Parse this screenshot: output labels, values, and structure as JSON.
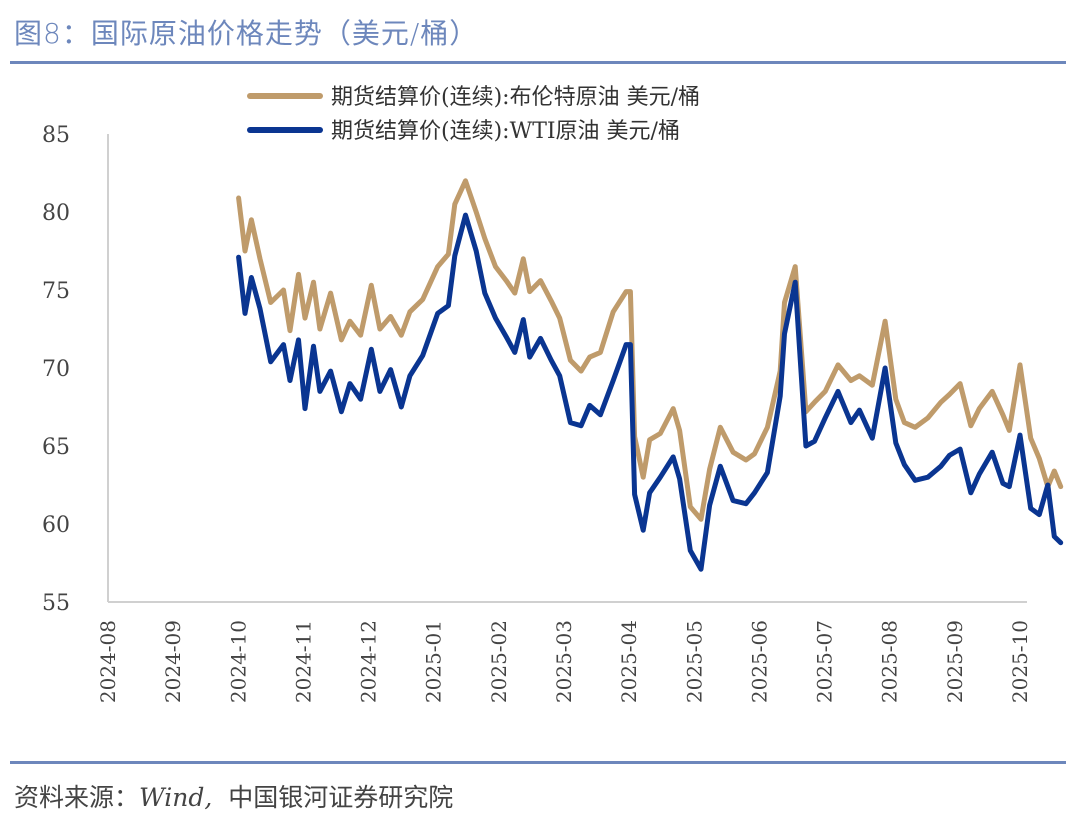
{
  "header": {
    "title": "图8：国际原油价格走势（美元/桶）"
  },
  "footer": {
    "source_prefix": "资料来源：",
    "source_en": "Wind,",
    "source_cn": "中国银河证券研究院"
  },
  "colors": {
    "accent": "#6d87bc",
    "brent": "#bf9b6b",
    "wti": "#0a3591",
    "axis": "#d0d0d0"
  },
  "chart_data": {
    "type": "line",
    "title": "国际原油价格走势（美元/桶）",
    "xlabel": "",
    "ylabel": "",
    "ylim": [
      55,
      85
    ],
    "yticks": [
      55,
      60,
      65,
      70,
      75,
      80,
      85
    ],
    "xlim": [
      "2024-08-01",
      "2025-10-22"
    ],
    "xticks": [
      "2024-08",
      "2024-09",
      "2024-10",
      "2024-11",
      "2024-12",
      "2025-01",
      "2025-02",
      "2025-03",
      "2025-04",
      "2025-05",
      "2025-06",
      "2025-07",
      "2025-08",
      "2025-09",
      "2025-10"
    ],
    "grid": false,
    "legend_position": "top-center",
    "series": [
      {
        "name": "期货结算价(连续):布伦特原油 美元/桶",
        "color": "#bf9b6b",
        "x": [
          "2024-10-01",
          "2024-10-04",
          "2024-10-07",
          "2024-10-11",
          "2024-10-16",
          "2024-10-22",
          "2024-10-25",
          "2024-10-29",
          "2024-11-01",
          "2024-11-05",
          "2024-11-08",
          "2024-11-13",
          "2024-11-18",
          "2024-11-22",
          "2024-11-27",
          "2024-12-02",
          "2024-12-06",
          "2024-12-11",
          "2024-12-16",
          "2024-12-20",
          "2024-12-26",
          "2025-01-02",
          "2025-01-07",
          "2025-01-10",
          "2025-01-15",
          "2025-01-20",
          "2025-01-24",
          "2025-01-29",
          "2025-02-03",
          "2025-02-07",
          "2025-02-11",
          "2025-02-14",
          "2025-02-19",
          "2025-02-24",
          "2025-02-28",
          "2025-03-05",
          "2025-03-10",
          "2025-03-14",
          "2025-03-19",
          "2025-03-25",
          "2025-03-31",
          "2025-04-02",
          "2025-04-04",
          "2025-04-08",
          "2025-04-11",
          "2025-04-16",
          "2025-04-22",
          "2025-04-25",
          "2025-04-30",
          "2025-05-05",
          "2025-05-09",
          "2025-05-14",
          "2025-05-20",
          "2025-05-26",
          "2025-05-30",
          "2025-06-05",
          "2025-06-11",
          "2025-06-13",
          "2025-06-18",
          "2025-06-23",
          "2025-06-27",
          "2025-07-02",
          "2025-07-08",
          "2025-07-14",
          "2025-07-18",
          "2025-07-24",
          "2025-07-30",
          "2025-08-04",
          "2025-08-08",
          "2025-08-13",
          "2025-08-19",
          "2025-08-25",
          "2025-08-29",
          "2025-09-03",
          "2025-09-08",
          "2025-09-12",
          "2025-09-18",
          "2025-09-23",
          "2025-09-26",
          "2025-10-01",
          "2025-10-06",
          "2025-10-10",
          "2025-10-14",
          "2025-10-17",
          "2025-10-20"
        ],
        "values": [
          80.9,
          77.5,
          79.5,
          77.0,
          74.2,
          75.0,
          72.4,
          76.0,
          73.2,
          75.5,
          72.5,
          74.8,
          71.8,
          73.0,
          72.1,
          75.3,
          72.5,
          73.3,
          72.1,
          73.6,
          74.4,
          76.5,
          77.3,
          80.5,
          82.0,
          80.0,
          78.3,
          76.5,
          75.6,
          74.8,
          77.0,
          74.9,
          75.6,
          74.3,
          73.2,
          70.5,
          69.8,
          70.7,
          71.0,
          73.6,
          74.9,
          74.9,
          65.6,
          63.0,
          65.4,
          65.8,
          67.4,
          66.0,
          61.1,
          60.3,
          63.5,
          66.2,
          64.6,
          64.1,
          64.5,
          66.2,
          69.8,
          74.2,
          76.5,
          67.2,
          67.8,
          68.5,
          70.2,
          69.2,
          69.5,
          68.9,
          73.0,
          68.0,
          66.5,
          66.2,
          66.8,
          67.8,
          68.3,
          69.0,
          66.3,
          67.4,
          68.5,
          67.0,
          66.0,
          70.2,
          65.5,
          64.2,
          62.4,
          63.4,
          62.4
        ]
      },
      {
        "name": "期货结算价(连续):WTI原油 美元/桶",
        "color": "#0a3591",
        "x": [
          "2024-10-01",
          "2024-10-04",
          "2024-10-07",
          "2024-10-11",
          "2024-10-16",
          "2024-10-22",
          "2024-10-25",
          "2024-10-29",
          "2024-11-01",
          "2024-11-05",
          "2024-11-08",
          "2024-11-13",
          "2024-11-18",
          "2024-11-22",
          "2024-11-27",
          "2024-12-02",
          "2024-12-06",
          "2024-12-11",
          "2024-12-16",
          "2024-12-20",
          "2024-12-26",
          "2025-01-02",
          "2025-01-07",
          "2025-01-10",
          "2025-01-15",
          "2025-01-20",
          "2025-01-24",
          "2025-01-29",
          "2025-02-03",
          "2025-02-07",
          "2025-02-11",
          "2025-02-14",
          "2025-02-19",
          "2025-02-24",
          "2025-02-28",
          "2025-03-05",
          "2025-03-10",
          "2025-03-14",
          "2025-03-19",
          "2025-03-25",
          "2025-03-31",
          "2025-04-02",
          "2025-04-04",
          "2025-04-08",
          "2025-04-11",
          "2025-04-16",
          "2025-04-22",
          "2025-04-25",
          "2025-04-30",
          "2025-05-05",
          "2025-05-09",
          "2025-05-14",
          "2025-05-20",
          "2025-05-26",
          "2025-05-30",
          "2025-06-05",
          "2025-06-11",
          "2025-06-13",
          "2025-06-18",
          "2025-06-23",
          "2025-06-27",
          "2025-07-02",
          "2025-07-08",
          "2025-07-14",
          "2025-07-18",
          "2025-07-24",
          "2025-07-30",
          "2025-08-04",
          "2025-08-08",
          "2025-08-13",
          "2025-08-19",
          "2025-08-25",
          "2025-08-29",
          "2025-09-03",
          "2025-09-08",
          "2025-09-12",
          "2025-09-18",
          "2025-09-23",
          "2025-09-26",
          "2025-10-01",
          "2025-10-06",
          "2025-10-10",
          "2025-10-14",
          "2025-10-17",
          "2025-10-20"
        ],
        "values": [
          77.1,
          73.5,
          75.8,
          73.8,
          70.4,
          71.5,
          69.2,
          71.8,
          67.4,
          71.4,
          68.5,
          69.8,
          67.2,
          69.0,
          68.0,
          71.2,
          68.5,
          69.9,
          67.5,
          69.5,
          70.8,
          73.5,
          74.0,
          77.2,
          79.8,
          77.5,
          74.8,
          73.2,
          72.0,
          71.0,
          73.1,
          70.7,
          71.9,
          70.5,
          69.5,
          66.5,
          66.3,
          67.6,
          67.0,
          69.2,
          71.5,
          71.5,
          61.9,
          59.6,
          62.0,
          63.0,
          64.3,
          62.9,
          58.3,
          57.1,
          61.2,
          63.7,
          61.5,
          61.3,
          62.0,
          63.3,
          68.2,
          72.2,
          75.5,
          65.0,
          65.3,
          66.8,
          68.5,
          66.5,
          67.3,
          65.5,
          70.0,
          65.2,
          63.8,
          62.8,
          63.0,
          63.7,
          64.4,
          64.8,
          62.0,
          63.2,
          64.6,
          62.6,
          62.4,
          65.7,
          61.0,
          60.6,
          62.5,
          59.2,
          58.8
        ]
      }
    ]
  }
}
